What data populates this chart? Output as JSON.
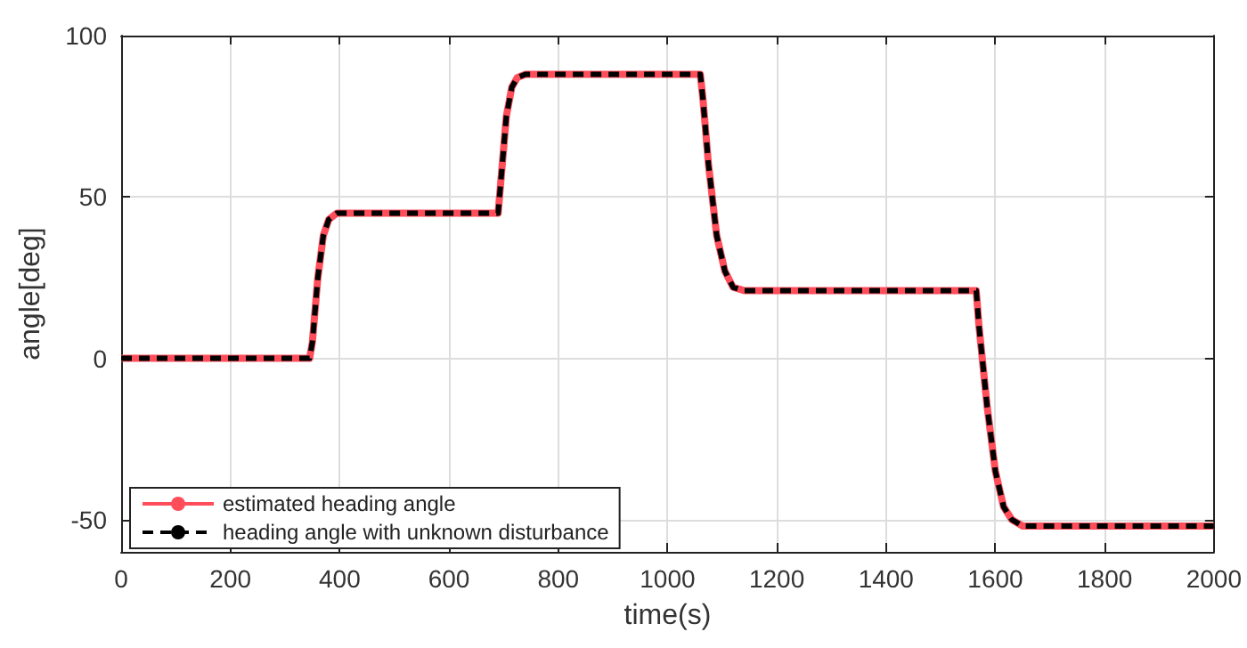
{
  "chart_data": {
    "type": "line",
    "xlabel": "time(s)",
    "ylabel": "angle[deg]",
    "xlim": [
      0,
      2000
    ],
    "ylim": [
      -60,
      100
    ],
    "xticks": [
      0,
      200,
      400,
      600,
      800,
      1000,
      1200,
      1400,
      1600,
      1800,
      2000
    ],
    "yticks": [
      -50,
      0,
      50,
      100
    ],
    "grid": true,
    "legend": "bottom left",
    "marker": "none",
    "series": [
      {
        "name": "estimated heading angle",
        "color": "#ff4d5a",
        "line_style": "solid",
        "x": [
          0,
          345,
          350,
          360,
          370,
          380,
          395,
          420,
          690,
          695,
          705,
          715,
          725,
          740,
          760,
          1060,
          1065,
          1075,
          1090,
          1105,
          1120,
          1140,
          1170,
          1565,
          1570,
          1585,
          1600,
          1615,
          1630,
          1650,
          1680,
          2000
        ],
        "values": [
          0,
          0,
          5,
          25,
          38,
          43,
          45,
          45,
          45,
          55,
          75,
          84,
          87,
          88,
          88,
          88,
          80,
          60,
          38,
          27,
          22,
          21,
          21,
          21,
          10,
          -15,
          -35,
          -46,
          -50,
          -52,
          -52,
          -52
        ]
      },
      {
        "name": "heading angle with unknown disturbance",
        "color": "#000000",
        "line_style": "dashed",
        "x": [
          0,
          345,
          350,
          360,
          370,
          380,
          395,
          420,
          690,
          695,
          705,
          715,
          725,
          740,
          760,
          1060,
          1065,
          1075,
          1090,
          1105,
          1120,
          1140,
          1170,
          1565,
          1570,
          1585,
          1600,
          1615,
          1630,
          1650,
          1680,
          2000
        ],
        "values": [
          0,
          0,
          5,
          25,
          38,
          43,
          45,
          45,
          45,
          55,
          75,
          84,
          87,
          88,
          88,
          88,
          80,
          60,
          38,
          27,
          22,
          21,
          21,
          21,
          10,
          -15,
          -35,
          -46,
          -50,
          -52,
          -52,
          -52
        ]
      }
    ]
  }
}
